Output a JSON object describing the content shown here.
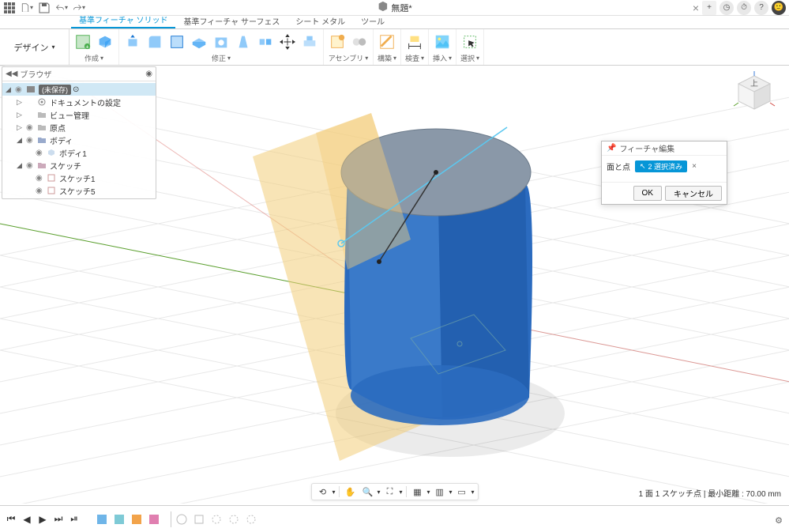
{
  "titlebar": {
    "doc_title": "無題*",
    "close_x": "×",
    "plus": "+"
  },
  "ribbon": {
    "design_label": "デザイン",
    "tabs": [
      "基準フィーチャ ソリッド",
      "基準フィーチャ サーフェス",
      "シート メタル",
      "ツール"
    ],
    "active_tab": 0,
    "groups": {
      "create": "作成",
      "modify": "修正",
      "assembly": "アセンブリ",
      "construct": "構築",
      "inspect": "検査",
      "insert": "挿入",
      "select": "選択"
    }
  },
  "browser": {
    "title": "ブラウザ",
    "root_chip": "(未保存)",
    "items": [
      {
        "indent": 1,
        "toggle": "▷",
        "eye": false,
        "icon": "gear",
        "label": "ドキュメントの設定"
      },
      {
        "indent": 1,
        "toggle": "▷",
        "eye": false,
        "icon": "folder",
        "label": "ビュー管理"
      },
      {
        "indent": 1,
        "toggle": "▷",
        "eye": true,
        "icon": "folder",
        "label": "原点"
      },
      {
        "indent": 1,
        "toggle": "◢",
        "eye": true,
        "icon": "body-folder",
        "label": "ボディ"
      },
      {
        "indent": 2,
        "toggle": "",
        "eye": true,
        "icon": "body",
        "label": "ボディ1"
      },
      {
        "indent": 1,
        "toggle": "◢",
        "eye": true,
        "icon": "sketch-folder",
        "label": "スケッチ"
      },
      {
        "indent": 2,
        "toggle": "",
        "eye": true,
        "icon": "sketch",
        "label": "スケッチ1"
      },
      {
        "indent": 2,
        "toggle": "",
        "eye": true,
        "icon": "sketch",
        "label": "スケッチ5"
      }
    ]
  },
  "dialog": {
    "title": "フィーチャ編集",
    "row_label": "面と点",
    "selection_chip": "2 選択済み",
    "clear_x": "×",
    "ok": "OK",
    "cancel": "キャンセル"
  },
  "status": {
    "text": "1 面  1 スケッチ点 | 最小距離 : 70.00 mm"
  },
  "viewcube": {
    "top": "上"
  },
  "scene": {
    "background": "#ffffff",
    "grid_color": "#e8e8e8",
    "axis_x_color": "#d24a43",
    "axis_y_color": "#5aa02c",
    "cylinder_side": "#2b6bbf",
    "cylinder_side_light": "#4d87d1",
    "cylinder_top": "#8a98a8",
    "plane_fill": "#f3cd7a",
    "plane_opacity": 0.65,
    "sketch_line": "#5bc8f0",
    "measure_line": "#333333",
    "point_color": "#222222",
    "shadow_color": "#00000022"
  },
  "timeline": {
    "playback": [
      "⏮",
      "◀",
      "▶",
      "⏭",
      "⏯"
    ],
    "feature_colors": [
      "#6fb5e8",
      "#7ecad6",
      "#f2a34a",
      "#e07fb0"
    ]
  }
}
